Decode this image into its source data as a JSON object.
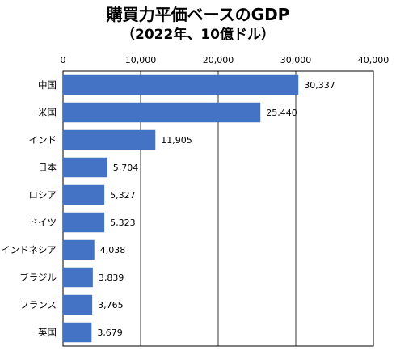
{
  "chart_data": {
    "type": "bar",
    "orientation": "horizontal",
    "title": "購買力平価ベースのGDP",
    "subtitle": "（2022年、10億ドル）",
    "categories": [
      "中国",
      "米国",
      "インド",
      "日本",
      "ロシア",
      "ドイツ",
      "インドネシア",
      "ブラジル",
      "フランス",
      "英国"
    ],
    "values": [
      30337,
      25440,
      11905,
      5704,
      5327,
      5323,
      4038,
      3839,
      3765,
      3679
    ],
    "data_labels": [
      "30,337",
      "25,440",
      "11,905",
      "5,704",
      "5,327",
      "5,323",
      "4,038",
      "3,839",
      "3,765",
      "3,679"
    ],
    "x_ticks": [
      0,
      10000,
      20000,
      30000,
      40000
    ],
    "x_tick_labels": [
      "0",
      "10,000",
      "20,000",
      "30,000",
      "40,000"
    ],
    "xlim": [
      0,
      40000
    ],
    "axis_position": "top",
    "grid": true,
    "bar_color": "#4472C4"
  }
}
